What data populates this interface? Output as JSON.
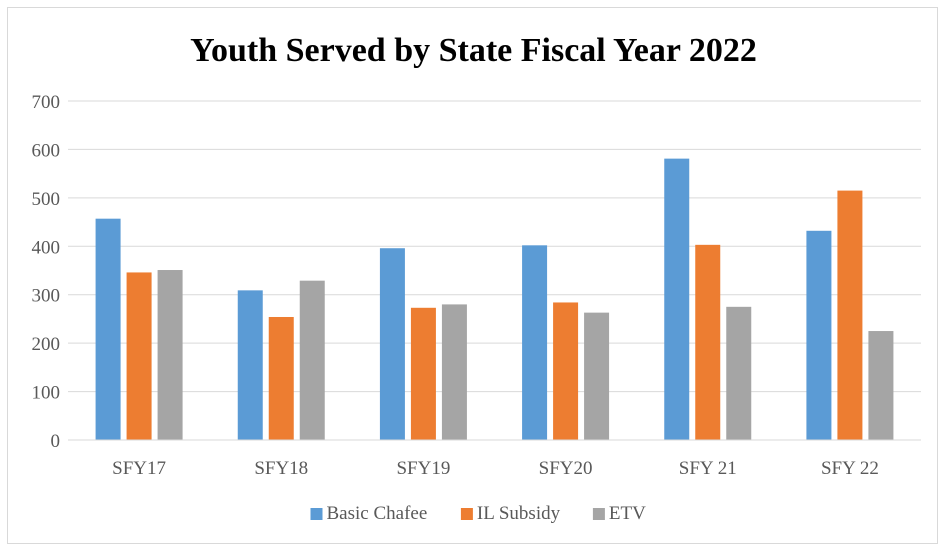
{
  "chart_data": {
    "type": "bar",
    "title": "Youth Served by State Fiscal Year 2022",
    "xlabel": "",
    "ylabel": "",
    "categories": [
      "SFY17",
      "SFY18",
      "SFY19",
      "SFY20",
      "SFY 21",
      "SFY 22"
    ],
    "series": [
      {
        "name": "Basic Chafee",
        "color": "#5b9bd5",
        "values": [
          457,
          309,
          396,
          402,
          581,
          432
        ]
      },
      {
        "name": "IL Subsidy",
        "color": "#ed7d31",
        "values": [
          346,
          254,
          273,
          284,
          403,
          515
        ]
      },
      {
        "name": "ETV",
        "color": "#a5a5a5",
        "values": [
          351,
          329,
          280,
          263,
          275,
          225
        ]
      }
    ],
    "ylim": [
      0,
      700
    ],
    "yticks": [
      0,
      100,
      200,
      300,
      400,
      500,
      600,
      700
    ],
    "grid": true,
    "legend_position": "bottom"
  }
}
